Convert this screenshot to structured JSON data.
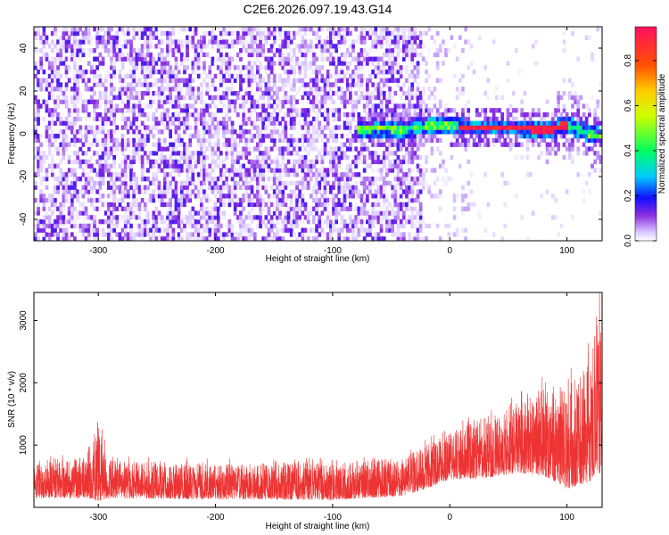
{
  "title": "C2E6.2026.097.19.43.G14",
  "chart_data": [
    {
      "type": "heatmap",
      "xlabel": "Height of straight line (km)",
      "ylabel": "Frequency (Hz)",
      "xlim": [
        -355,
        130
      ],
      "ylim": [
        -50,
        50
      ],
      "xticks": [
        -300,
        -200,
        -100,
        0,
        100
      ],
      "xtick_labels": [
        "-300",
        "-200",
        "-100",
        "0",
        "100"
      ],
      "yticks": [
        -40,
        -20,
        0,
        20,
        40
      ],
      "ytick_labels": [
        "-40",
        "-20",
        "0",
        "20",
        "40"
      ],
      "colorbar": {
        "label": "Normalized spectral amplitude",
        "range": [
          0,
          0.95
        ],
        "ticks": [
          0,
          0.2,
          0.4,
          0.6,
          0.8
        ],
        "tick_labels": [
          "0.0",
          "0.2",
          "0.4",
          "0.6",
          "0.8"
        ]
      },
      "noise_region_x": [
        -355,
        -25
      ],
      "signal_trace": {
        "x": [
          -75,
          -60,
          -45,
          -30,
          -15,
          0,
          10,
          20,
          40,
          60,
          75,
          85,
          95,
          105,
          115,
          125
        ],
        "y": [
          1,
          2,
          1,
          2,
          3,
          3,
          2,
          2,
          2,
          2,
          1,
          1,
          3,
          2,
          0,
          -2
        ]
      }
    },
    {
      "type": "line",
      "xlabel": "Height of straight line (km)",
      "ylabel": "SNR (10 * v/v)",
      "xlim": [
        -355,
        130
      ],
      "ylim": [
        0,
        3450
      ],
      "xticks": [
        -300,
        -200,
        -100,
        0,
        100
      ],
      "xtick_labels": [
        "-300",
        "-200",
        "-100",
        "0",
        "100"
      ],
      "yticks": [
        1000,
        2000,
        3000
      ],
      "ytick_labels": [
        "1000",
        "2000",
        "3000"
      ],
      "series_color": "#ee3333",
      "envelope": {
        "x": [
          -355,
          -310,
          -300,
          -290,
          -200,
          -100,
          -40,
          -20,
          0,
          20,
          40,
          60,
          80,
          100,
          110,
          120,
          125,
          130
        ],
        "low": [
          150,
          150,
          100,
          150,
          130,
          120,
          180,
          300,
          450,
          450,
          500,
          550,
          500,
          300,
          350,
          400,
          600,
          500
        ],
        "high": [
          700,
          800,
          1300,
          750,
          700,
          720,
          800,
          1000,
          1200,
          1400,
          1500,
          1700,
          1900,
          2000,
          2100,
          2400,
          3400,
          3000
        ]
      }
    }
  ]
}
